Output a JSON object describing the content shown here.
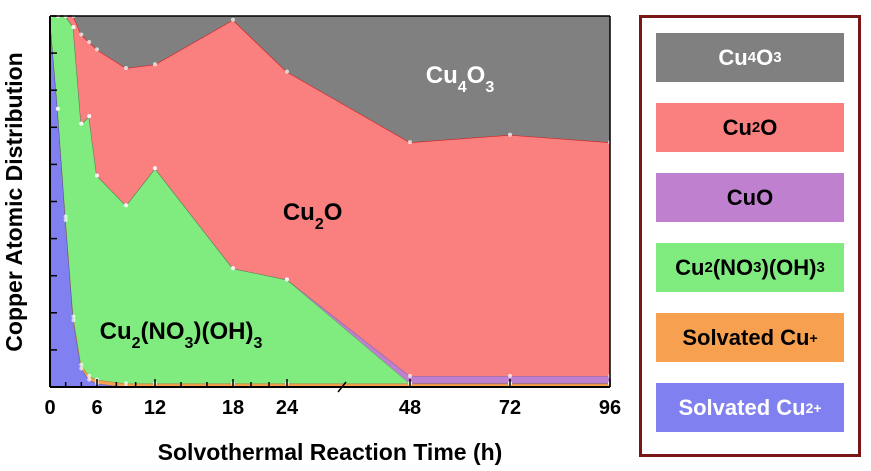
{
  "chart_data": {
    "type": "area",
    "stacked": true,
    "normalized": true,
    "xlabel": "Solvothermal Reaction Time (h)",
    "ylabel": "Copper Atomic Distribution",
    "x_ticks": [
      0,
      6,
      12,
      18,
      24,
      48,
      72,
      96
    ],
    "axis_break": "between 24 and 48",
    "x": [
      0,
      1,
      2,
      3,
      4,
      5,
      6,
      9,
      12,
      18,
      24,
      48,
      72,
      96
    ],
    "series": [
      {
        "name": "Solvated Cu2+",
        "color": "#8080f0",
        "values": [
          1.0,
          0.75,
          0.45,
          0.18,
          0.05,
          0.02,
          0.01,
          0.0,
          0.0,
          0.0,
          0.0,
          0.0,
          0.0,
          0.0
        ]
      },
      {
        "name": "Solvated Cu+",
        "color": "#f7a04f",
        "values": [
          0.0,
          0.0,
          0.01,
          0.01,
          0.01,
          0.01,
          0.01,
          0.01,
          0.01,
          0.01,
          0.01,
          0.01,
          0.01,
          0.01
        ]
      },
      {
        "name": "Cu2(NO3)(OH)3",
        "color": "#80ec80",
        "values": [
          0.0,
          0.25,
          0.54,
          0.78,
          0.65,
          0.7,
          0.55,
          0.48,
          0.58,
          0.31,
          0.28,
          0.0,
          0.0,
          0.0
        ]
      },
      {
        "name": "CuO",
        "color": "#c080d0",
        "values": [
          0.0,
          0.0,
          0.0,
          0.0,
          0.0,
          0.0,
          0.0,
          0.0,
          0.0,
          0.0,
          0.0,
          0.02,
          0.02,
          0.02
        ]
      },
      {
        "name": "Cu2O",
        "color": "#fa8080",
        "values": [
          0.0,
          0.0,
          0.0,
          0.03,
          0.24,
          0.2,
          0.34,
          0.37,
          0.28,
          0.67,
          0.56,
          0.63,
          0.65,
          0.63
        ]
      },
      {
        "name": "Cu4O3",
        "color": "#808080",
        "values": [
          0.0,
          0.0,
          0.0,
          0.0,
          0.05,
          0.07,
          0.09,
          0.14,
          0.13,
          0.01,
          0.15,
          0.34,
          0.32,
          0.34
        ]
      }
    ],
    "ylim": [
      0,
      1
    ],
    "area_labels": [
      {
        "series": "Cu4O3",
        "x": 60,
        "y": 0.82
      },
      {
        "series": "Cu2O",
        "x": 29,
        "y": 0.45
      },
      {
        "series": "Cu2(NO3)(OH)3",
        "x": 14,
        "y": 0.13
      }
    ],
    "legend_position": "right",
    "legend": [
      {
        "series": "Cu4O3",
        "color": "#808080",
        "text_color": "#ffffff"
      },
      {
        "series": "Cu2O",
        "color": "#fa8080",
        "text_color": "#000000"
      },
      {
        "series": "CuO",
        "color": "#c080d0",
        "text_color": "#000000"
      },
      {
        "series": "Cu2(NO3)(OH)3",
        "color": "#80ec80",
        "text_color": "#000000"
      },
      {
        "series": "Solvated Cu+",
        "color": "#f7a04f",
        "text_color": "#000000"
      },
      {
        "series": "Solvated Cu2+",
        "color": "#8080f0",
        "text_color": "#ffffff"
      }
    ]
  }
}
